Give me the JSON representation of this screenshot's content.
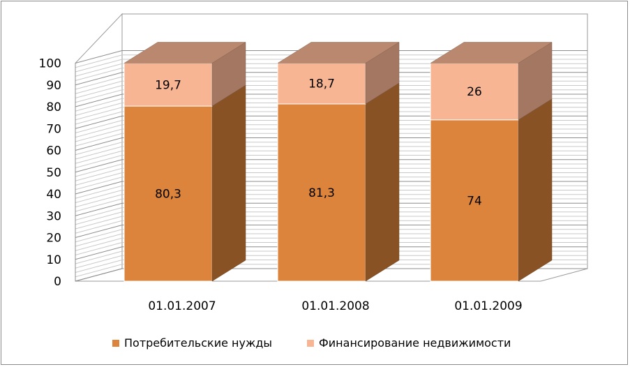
{
  "chart_data": {
    "type": "bar",
    "stacked": true,
    "three_d": true,
    "categories": [
      "01.01.2007",
      "01.01.2008",
      "01.01.2009"
    ],
    "series": [
      {
        "name": "Потребительские нужды",
        "values": [
          80.3,
          81.3,
          74
        ],
        "labels": [
          "80,3",
          "81,3",
          "74"
        ],
        "color": "#dc843c"
      },
      {
        "name": "Финансирование недвижимости",
        "values": [
          19.7,
          18.7,
          26
        ],
        "labels": [
          "19,7",
          "18,7",
          "26"
        ],
        "color": "#f7b594"
      }
    ],
    "yticks": [
      "0",
      "10",
      "20",
      "30",
      "40",
      "50",
      "60",
      "70",
      "80",
      "90",
      "100"
    ],
    "ylim": [
      0,
      100
    ],
    "grid": true,
    "legend_position": "bottom",
    "title": "",
    "xlabel": "",
    "ylabel": ""
  }
}
